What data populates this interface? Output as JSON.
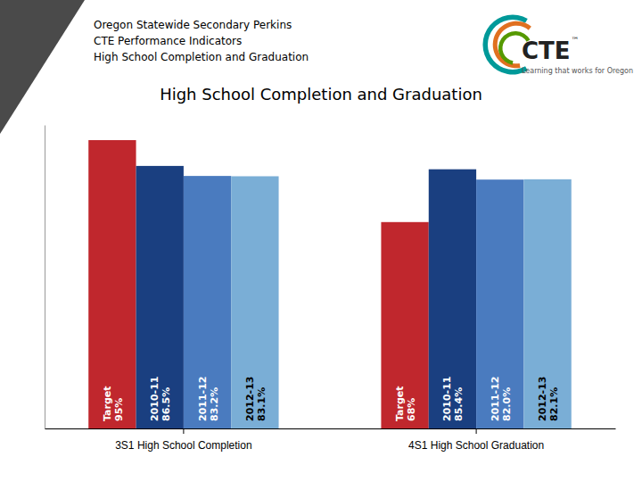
{
  "chart_data": {
    "type": "bar",
    "title": "High School Completion and Graduation",
    "annotations": [
      "Oregon Statewide Secondary Perkins",
      "CTE Performance Indicators",
      "High School Completion and Graduation",
      "CTE",
      "™",
      "Learning that works for Oregon"
    ],
    "categories": [
      "3S1 High School Completion",
      "4S1 High School Graduation"
    ],
    "series": [
      {
        "name": "Target",
        "color": "#c0272d",
        "values": [
          95,
          68
        ],
        "value_labels": [
          "95%",
          "68%"
        ]
      },
      {
        "name": "2010-11",
        "color": "#1a3f80",
        "values": [
          86.5,
          85.4
        ],
        "value_labels": [
          "86.5%",
          "85.4%"
        ]
      },
      {
        "name": "2011-12",
        "color": "#4a7bbf",
        "values": [
          83.2,
          82.0
        ],
        "value_labels": [
          "83.2%",
          "82.0%"
        ]
      },
      {
        "name": "2012-13",
        "color": "#7aaed6",
        "values": [
          83.1,
          82.1
        ],
        "value_labels": [
          "83.1%",
          "82.1%"
        ]
      }
    ],
    "ylim": [
      0,
      100
    ],
    "data_labels": true,
    "tick_labels": "x"
  }
}
